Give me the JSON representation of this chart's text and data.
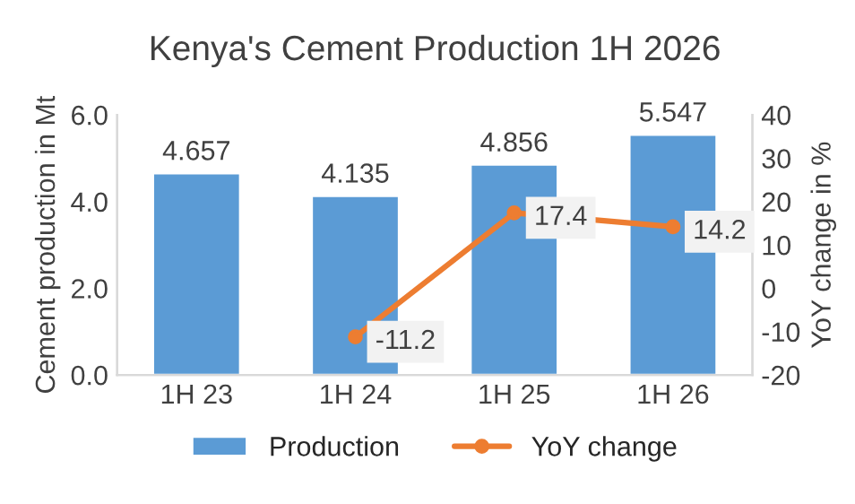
{
  "chart_data": {
    "type": "bar",
    "title": "Kenya's Cement Production 1H 2026",
    "categories": [
      "1H 23",
      "1H 24",
      "1H 25",
      "1H 26"
    ],
    "series": [
      {
        "name": "Production",
        "color": "#5b9bd5",
        "values": [
          4.657,
          4.135,
          4.856,
          5.547
        ]
      },
      {
        "name": "YoY change",
        "type": "line",
        "axis": "y2",
        "color": "#ed7d31",
        "values": [
          null,
          -11.2,
          17.4,
          14.2
        ]
      }
    ],
    "ylabel": "Cement production in Mt",
    "y2label": "YoY change in %",
    "ylim": [
      0,
      6
    ],
    "yticks": [
      {
        "value": 0,
        "label": "0.0"
      },
      {
        "value": 2,
        "label": "2.0"
      },
      {
        "value": 4,
        "label": "4.0"
      },
      {
        "value": 6,
        "label": "6.0"
      }
    ],
    "y2lim": [
      -20,
      40
    ],
    "y2ticks": [
      -20,
      -10,
      0,
      10,
      20,
      30,
      40
    ],
    "data_labels": true,
    "legend": "bottom",
    "marker": "circle",
    "grid": false
  }
}
